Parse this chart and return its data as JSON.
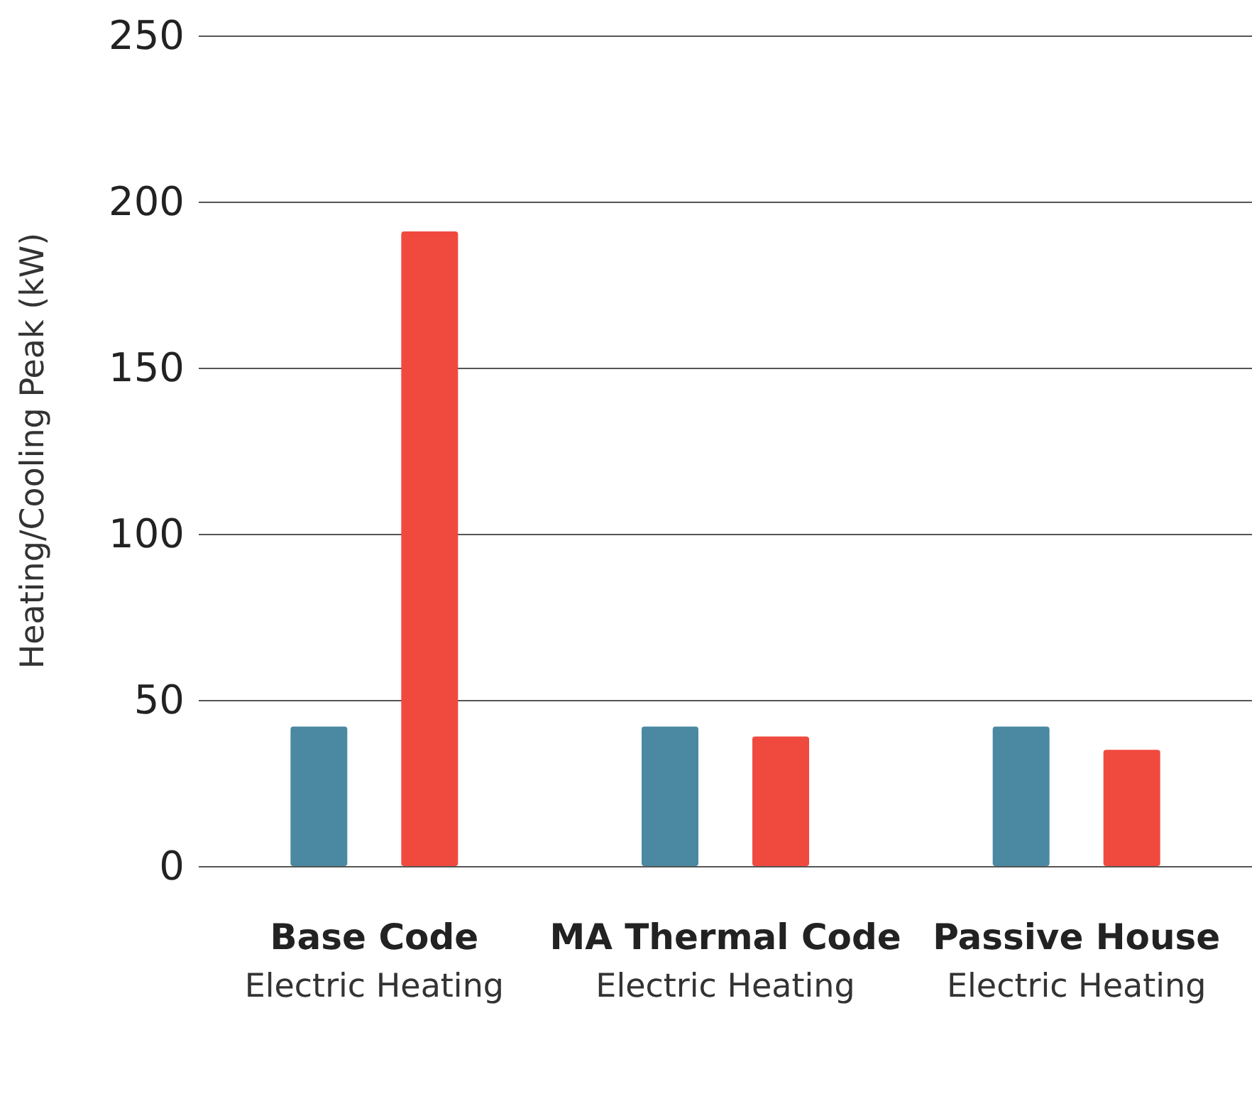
{
  "chart_data": {
    "type": "bar",
    "ylabel": "Heating/Cooling Peak (kW)",
    "categories": [
      "Base Code\nElectric Heating",
      "MA Thermal Code\nElectric Heating",
      "Passive House\nElectric Heating"
    ],
    "series": [
      {
        "color": "#4a89a1",
        "values": [
          42,
          42,
          42
        ]
      },
      {
        "color": "#f04a3f",
        "values": [
          191,
          39,
          35
        ]
      }
    ],
    "ylim": [
      0,
      250
    ],
    "yticks": [
      0,
      50,
      100,
      150,
      200,
      250
    ],
    "grid": "y"
  }
}
